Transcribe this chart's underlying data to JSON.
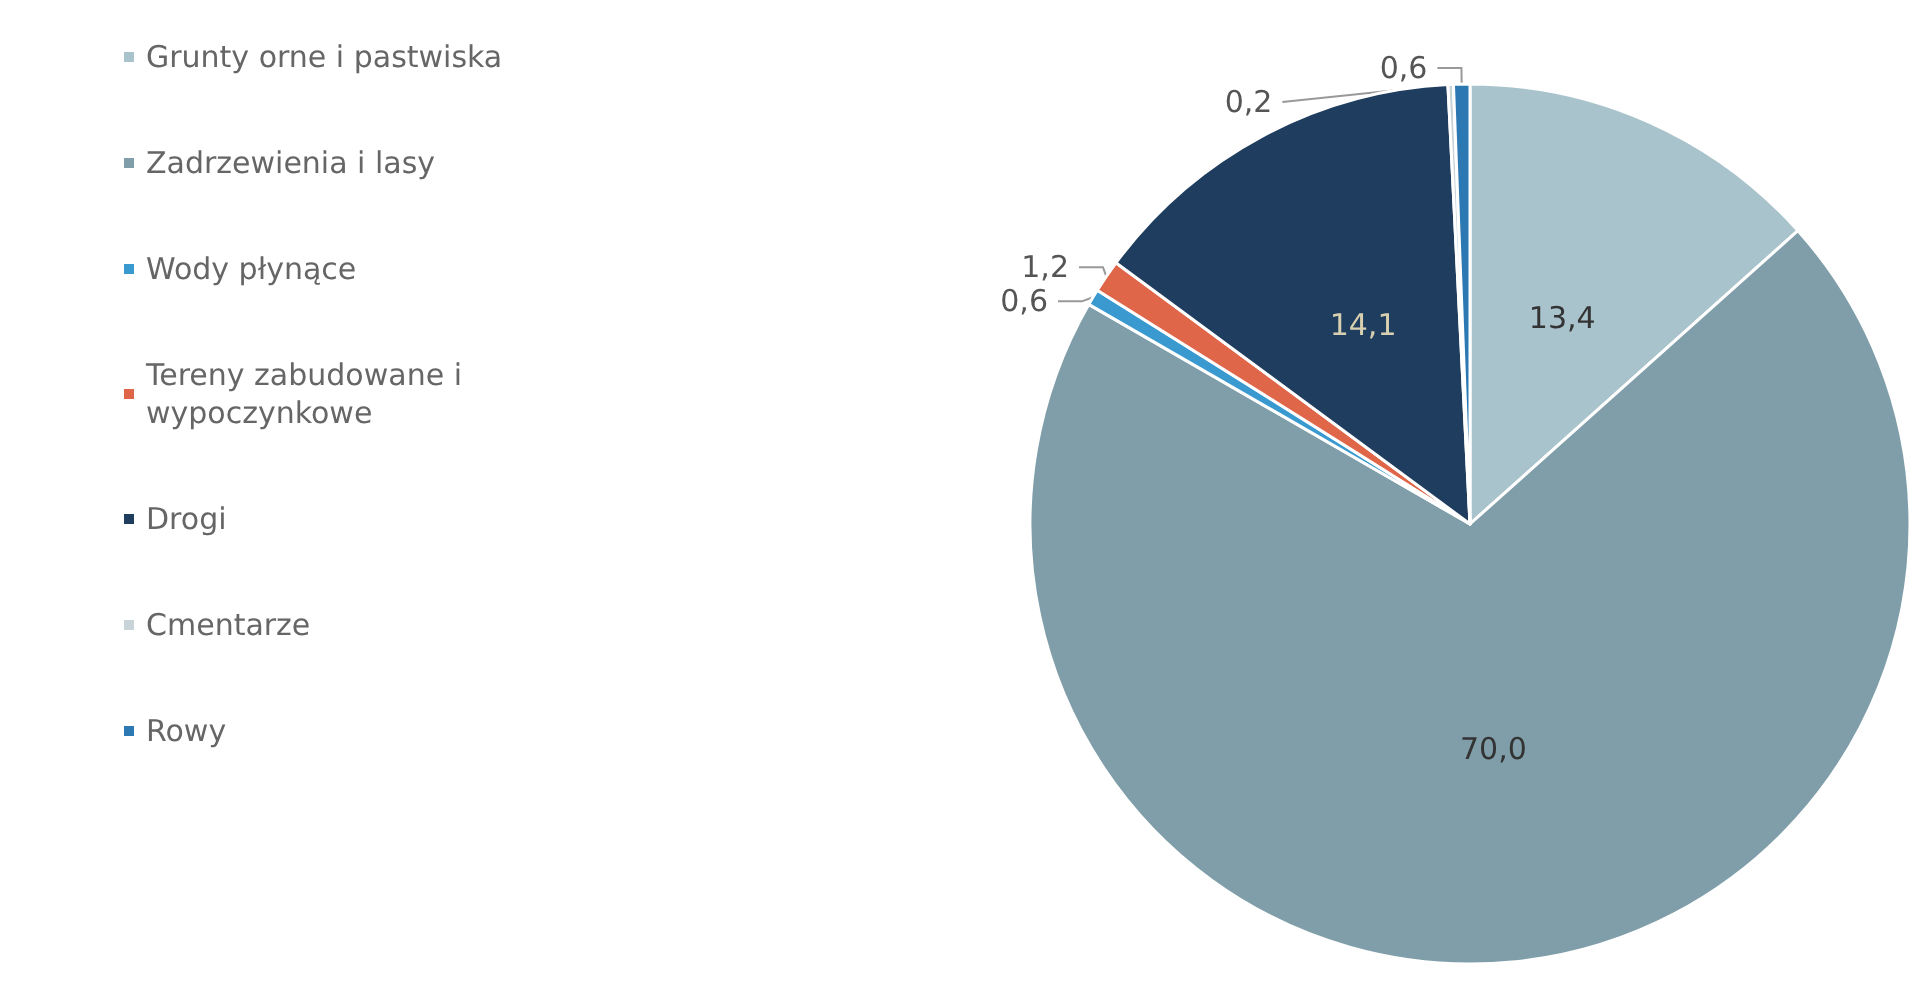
{
  "chart_data": {
    "type": "pie",
    "categories": [
      "Grunty orne i pastwiska",
      "Zadrzewienia i lasy",
      "Wody płynące",
      "Tereny zabudowane i wypoczynkowe",
      "Drogi",
      "Cmentarze",
      "Rowy"
    ],
    "values": [
      13.4,
      70.0,
      0.6,
      1.2,
      14.1,
      0.2,
      0.6
    ],
    "value_labels": [
      "13,4",
      "70,0",
      "0,6",
      "1,2",
      "14,1",
      "0,2",
      "0,6"
    ],
    "colors": [
      "#a9c3cc",
      "#7f9ea9",
      "#3a9ad0",
      "#e0664a",
      "#1f3d5e",
      "#c9d4d8",
      "#2b78b3"
    ],
    "legend": "left"
  }
}
